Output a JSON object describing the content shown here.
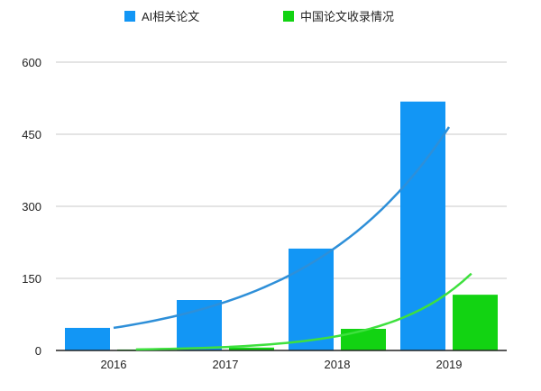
{
  "chart_data": {
    "type": "bar",
    "title": "",
    "xlabel": "",
    "ylabel": "",
    "categories": [
      "2016",
      "2017",
      "2018",
      "2019"
    ],
    "ylim": [
      0,
      600
    ],
    "yticks": [
      0,
      150,
      300,
      450,
      600
    ],
    "grid": true,
    "legend_position": "top",
    "series": [
      {
        "name": "AI相关论文",
        "color": "#1296f5",
        "values": [
          47,
          105,
          212,
          518
        ],
        "trend": {
          "type": "exponential",
          "color": "#2e8fd8",
          "from": [
            2016,
            47
          ],
          "to": [
            2019,
            465
          ]
        }
      },
      {
        "name": "中国论文收录情况",
        "color": "#12d312",
        "values": [
          2,
          6,
          45,
          116
        ],
        "trend": {
          "type": "exponential",
          "color": "#3ee03e",
          "from": [
            2016.2,
            2
          ],
          "to": [
            2019.2,
            160
          ]
        }
      }
    ]
  }
}
